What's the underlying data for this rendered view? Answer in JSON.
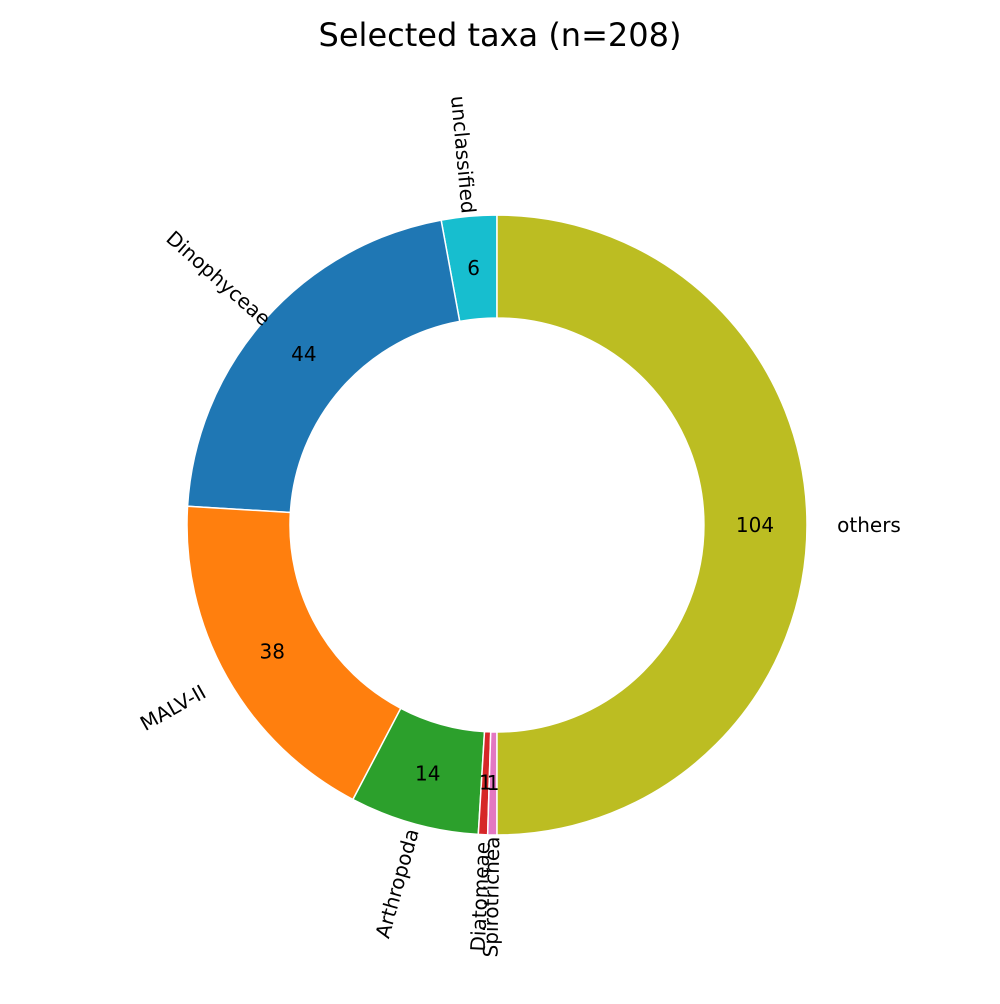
{
  "chart_data": {
    "type": "pie",
    "title": "Selected taxa (n=208)",
    "donut": true,
    "start": "top",
    "direction": "counterclockwise",
    "categories": [
      "unclassified",
      "Dinophyceae",
      "MALV-II",
      "Arthropoda",
      "Diatomeae",
      "Spirotrichea",
      "others"
    ],
    "values": [
      6,
      44,
      38,
      14,
      1,
      1,
      104
    ],
    "value_labels": [
      "6",
      "44",
      "38",
      "14",
      "1",
      "1",
      "104"
    ],
    "colors": [
      "#17becf",
      "#1f77b4",
      "#ff7f0e",
      "#2ca02c",
      "#d62728",
      "#e377c2",
      "#bcbd22"
    ],
    "legend": "none",
    "category_labels": "outside, rotated radially"
  }
}
